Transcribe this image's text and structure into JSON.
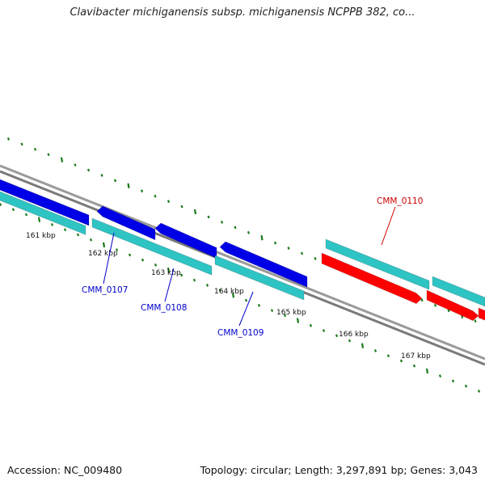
{
  "title": "Clavibacter michiganensis subsp. michiganensis NCPPB 382, co...",
  "footer": {
    "accession": "Accession: NC_009480",
    "summary": "Topology: circular; Length: 3,297,891 bp; Genes: 3,043"
  },
  "colors": {
    "forward_gene": "#0000e6",
    "reverse_gene": "#ff0000",
    "cds": "#2ec4c4",
    "backbone": "#888888",
    "ticks": "#1a7a1a",
    "label_blue": "#0000cc",
    "label_red": "#cc0000"
  },
  "ruler": {
    "ticks": [
      {
        "label": "161 kbp"
      },
      {
        "label": "162 kbp"
      },
      {
        "label": "163 kbp"
      },
      {
        "label": "164 kbp"
      },
      {
        "label": "165 kbp"
      },
      {
        "label": "166 kbp"
      },
      {
        "label": "167 kbp"
      }
    ]
  },
  "gene_labels": [
    {
      "text": "CMM_0107",
      "color": "blue"
    },
    {
      "text": "CMM_0108",
      "color": "blue"
    },
    {
      "text": "CMM_0109",
      "color": "blue"
    },
    {
      "text": "CMM_0110",
      "color": "red"
    }
  ]
}
